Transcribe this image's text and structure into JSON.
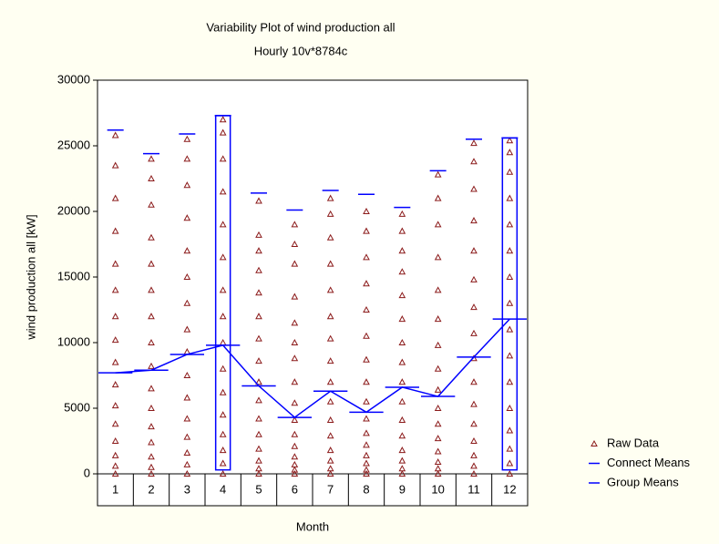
{
  "chart_data": {
    "type": "variability",
    "title": "Variability Plot of wind production all",
    "subtitle": "Hourly 10v*8784c",
    "xlabel": "Month",
    "ylabel": "wind production all [kW]",
    "categories": [
      "1",
      "2",
      "3",
      "4",
      "5",
      "6",
      "7",
      "8",
      "9",
      "10",
      "11",
      "12"
    ],
    "ylim": [
      0,
      30000
    ],
    "yticks": [
      0,
      5000,
      10000,
      15000,
      20000,
      25000,
      30000
    ],
    "legend": "right",
    "max_values": [
      26200,
      24400,
      25900,
      27300,
      21400,
      20100,
      21600,
      21300,
      20300,
      23100,
      25500,
      25600
    ],
    "box_low": [
      null,
      null,
      null,
      300,
      null,
      null,
      null,
      null,
      null,
      null,
      null,
      300
    ],
    "series": [
      {
        "name": "Raw Data",
        "color": "#8b1a1a",
        "values": [
          [
            0,
            600,
            1400,
            2500,
            3800,
            5200,
            6800,
            8500,
            10200,
            12000,
            14000,
            16000,
            18500,
            21000,
            23500,
            25800
          ],
          [
            0,
            500,
            1300,
            2400,
            3600,
            5000,
            6500,
            8200,
            10000,
            12000,
            14000,
            16000,
            18000,
            20500,
            22500,
            24000
          ],
          [
            0,
            700,
            1600,
            2800,
            4200,
            5800,
            7500,
            9300,
            11000,
            13000,
            15000,
            17000,
            19500,
            22000,
            24000,
            25500
          ],
          [
            0,
            800,
            1800,
            3000,
            4500,
            6200,
            8000,
            10000,
            12000,
            14000,
            16500,
            19000,
            21500,
            24000,
            26000,
            27000
          ],
          [
            0,
            400,
            1000,
            1900,
            3000,
            4200,
            5600,
            7000,
            8600,
            10300,
            12000,
            13800,
            15500,
            17000,
            18200,
            20800
          ],
          [
            0,
            300,
            700,
            1300,
            2100,
            3000,
            4100,
            5400,
            7000,
            8800,
            10000,
            11500,
            13500,
            16000,
            17500,
            19000
          ],
          [
            0,
            400,
            1000,
            1800,
            2900,
            4100,
            5500,
            7000,
            8600,
            10300,
            12000,
            14000,
            16000,
            18000,
            19800,
            21000
          ],
          [
            0,
            300,
            800,
            1400,
            2200,
            3100,
            4200,
            5500,
            7000,
            8700,
            10500,
            12500,
            14500,
            16500,
            18500,
            20000
          ],
          [
            0,
            400,
            1000,
            1800,
            2900,
            4100,
            5500,
            7000,
            8500,
            10000,
            11800,
            13600,
            15400,
            17000,
            18500,
            19800
          ],
          [
            0,
            400,
            900,
            1700,
            2700,
            3800,
            5000,
            6400,
            8000,
            9800,
            11800,
            14000,
            16500,
            19000,
            21000,
            22800
          ],
          [
            0,
            600,
            1400,
            2500,
            3800,
            5300,
            7000,
            8800,
            10700,
            12700,
            14800,
            17000,
            19300,
            21700,
            23800,
            25200
          ],
          [
            0,
            800,
            1900,
            3300,
            5000,
            7000,
            9000,
            11000,
            13000,
            15000,
            17000,
            19000,
            21000,
            23000,
            24500,
            25400
          ]
        ]
      },
      {
        "name": "Connect Means",
        "color": "#0000ff",
        "values": [
          7700,
          7900,
          9100,
          9800,
          6700,
          4300,
          6300,
          4700,
          6600,
          5900,
          8900,
          11800
        ]
      },
      {
        "name": "Group Means",
        "color": "#0000ff",
        "values": [
          7700,
          7900,
          9100,
          9800,
          6700,
          4300,
          6300,
          4700,
          6600,
          5900,
          8900,
          11800
        ]
      }
    ]
  }
}
